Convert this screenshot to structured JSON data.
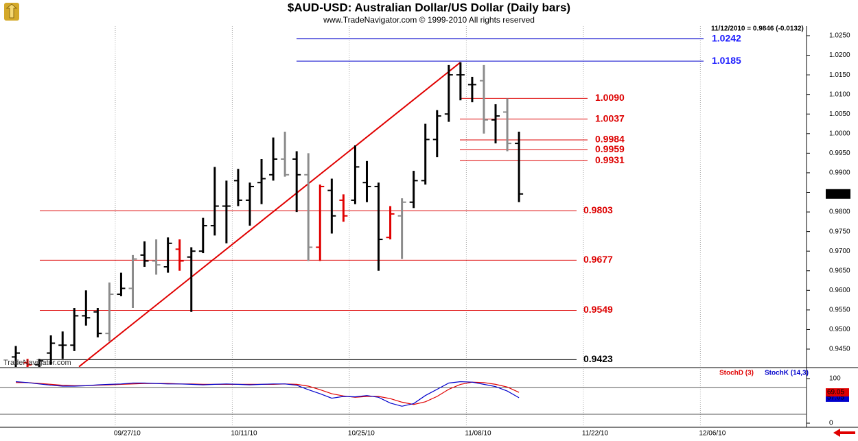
{
  "chart_data": [
    {
      "type": "ohlc",
      "title": "$AUD-USD:  Australian Dollar/US Dollar  (Daily bars)",
      "subtitle": "www.TradeNavigator.com © 1999-2010 All rights reserved",
      "header": "11/12/2010 = 0.9846 (-0.0132)",
      "watermark": "TradeNavigator.com",
      "open": [
        0.943,
        0.9415,
        0.941,
        0.944,
        0.946,
        0.946,
        0.9535,
        0.9545,
        0.949,
        0.959,
        0.9605,
        0.969,
        0.9675,
        0.966,
        0.9705,
        0.9685,
        0.97,
        0.9765,
        0.9815,
        0.988,
        0.983,
        0.9875,
        0.9895,
        0.9935,
        0.9935,
        0.9895,
        0.971,
        0.9855,
        0.983,
        0.983,
        0.9875,
        0.9865,
        0.9735,
        0.979,
        0.9825,
        0.988,
        0.9985,
        1.005,
        1.015,
        1.0125,
        1.0135,
        1.0035,
        1.0055,
        0.9975
      ],
      "high": [
        0.9458,
        0.9425,
        0.9425,
        0.9485,
        0.9495,
        0.9555,
        0.96,
        0.9555,
        0.962,
        0.9645,
        0.969,
        0.9725,
        0.973,
        0.9735,
        0.973,
        0.971,
        0.9785,
        0.9915,
        0.988,
        0.991,
        0.9875,
        0.9935,
        0.999,
        1.0005,
        0.9955,
        0.995,
        0.987,
        0.9885,
        0.9845,
        0.997,
        0.993,
        0.9875,
        0.9815,
        0.9835,
        0.9905,
        1.0025,
        1.006,
        1.0175,
        1.0182,
        1.0145,
        1.0175,
        1.0075,
        1.009,
        1.0005
      ],
      "low": [
        0.94,
        0.94,
        0.9395,
        0.941,
        0.9425,
        0.9445,
        0.951,
        0.948,
        0.947,
        0.9585,
        0.9555,
        0.966,
        0.964,
        0.9645,
        0.965,
        0.9545,
        0.9695,
        0.974,
        0.972,
        0.9815,
        0.9765,
        0.982,
        0.988,
        0.989,
        0.98,
        0.9675,
        0.9675,
        0.9745,
        0.9775,
        0.982,
        0.9825,
        0.965,
        0.973,
        0.968,
        0.981,
        0.987,
        0.994,
        1.003,
        1.0085,
        1.008,
        1.0,
        0.9975,
        0.9955,
        0.9825
      ],
      "close": [
        0.944,
        0.941,
        0.942,
        0.9465,
        0.946,
        0.9535,
        0.953,
        0.949,
        0.959,
        0.9605,
        0.968,
        0.9675,
        0.9665,
        0.972,
        0.9675,
        0.97,
        0.9765,
        0.9815,
        0.9815,
        0.983,
        0.9865,
        0.9885,
        0.9935,
        0.9895,
        0.9895,
        0.971,
        0.9865,
        0.979,
        0.979,
        0.9915,
        0.9865,
        0.973,
        0.9795,
        0.9825,
        0.988,
        0.9985,
        1.0045,
        1.015,
        1.015,
        1.0125,
        1.0035,
        1.0045,
        0.9975,
        0.9846
      ],
      "bar_colors": [
        "#000000",
        "#e00000",
        "#000000",
        "#000000",
        "#000000",
        "#000000",
        "#000000",
        "#000000",
        "#8c8c8c",
        "#000000",
        "#8c8c8c",
        "#000000",
        "#8c8c8c",
        "#000000",
        "#e00000",
        "#000000",
        "#000000",
        "#000000",
        "#000000",
        "#000000",
        "#000000",
        "#000000",
        "#000000",
        "#8c8c8c",
        "#000000",
        "#8c8c8c",
        "#e00000",
        "#000000",
        "#e00000",
        "#000000",
        "#000000",
        "#000000",
        "#e00000",
        "#8c8c8c",
        "#000000",
        "#000000",
        "#000000",
        "#000000",
        "#000000",
        "#000000",
        "#8c8c8c",
        "#000000",
        "#8c8c8c",
        "#000000"
      ],
      "xlim": [
        -1.35,
        67.57
      ],
      "xticks": [
        {
          "value": 8.5,
          "label": "09/27/10"
        },
        {
          "value": 18.5,
          "label": "10/11/10"
        },
        {
          "value": 28.5,
          "label": "10/25/10"
        },
        {
          "value": 38.5,
          "label": "11/08/10"
        },
        {
          "value": 48.5,
          "label": "11/22/10"
        },
        {
          "value": 58.5,
          "label": "12/06/10"
        }
      ],
      "ylim": [
        0.94045,
        1.02745
      ],
      "yticks": [
        {
          "value": 0.945,
          "label": "0.9450"
        },
        {
          "value": 0.95,
          "label": "0.9500"
        },
        {
          "value": 0.955,
          "label": "0.9550"
        },
        {
          "value": 0.96,
          "label": "0.9600"
        },
        {
          "value": 0.965,
          "label": "0.9650"
        },
        {
          "value": 0.97,
          "label": "0.9700"
        },
        {
          "value": 0.975,
          "label": "0.9750"
        },
        {
          "value": 0.98,
          "label": "0.9800"
        },
        {
          "value": 0.985,
          "label": "0.9850"
        },
        {
          "value": 0.99,
          "label": "0.9900"
        },
        {
          "value": 0.995,
          "label": "0.9950"
        },
        {
          "value": 1.0,
          "label": "1.0000"
        },
        {
          "value": 1.005,
          "label": "1.0050"
        },
        {
          "value": 1.01,
          "label": "1.0100"
        },
        {
          "value": 1.015,
          "label": "1.0150"
        },
        {
          "value": 1.02,
          "label": "1.0200"
        },
        {
          "value": 1.025,
          "label": "1.0250"
        }
      ],
      "last_price": 0.9846,
      "levels": [
        {
          "value": 1.0242,
          "label": "1.0242",
          "color": "#0000cc"
        },
        {
          "value": 1.0185,
          "label": "1.0185",
          "color": "#0000cc"
        },
        {
          "value": 1.009,
          "label": "1.0090",
          "color": "#dd0000"
        },
        {
          "value": 1.0037,
          "label": "1.0037",
          "color": "#dd0000"
        },
        {
          "value": 0.9984,
          "label": "0.9984",
          "color": "#dd0000"
        },
        {
          "value": 0.9959,
          "label": "0.9959",
          "color": "#dd0000"
        },
        {
          "value": 0.9931,
          "label": "0.9931",
          "color": "#dd0000"
        },
        {
          "value": 0.9803,
          "label": "0.9803",
          "color": "#dd0000"
        },
        {
          "value": 0.9677,
          "label": "0.9677",
          "color": "#dd0000"
        },
        {
          "value": 0.9549,
          "label": "0.9549",
          "color": "#dd0000"
        },
        {
          "value": 0.9423,
          "label": "0.9423",
          "color": "#000000"
        }
      ],
      "trendline": {
        "x": [
          5.4,
          38
        ],
        "values": [
          0.9405,
          1.0182
        ],
        "color": "#e00000"
      }
    },
    {
      "type": "line",
      "ylim": [
        -7.7,
        121.5
      ],
      "yticks": [
        0,
        100
      ],
      "levels": [
        20,
        80
      ],
      "series": [
        {
          "name": "StochD (3)",
          "color": "#e00000",
          "last_label": "69.05",
          "values": [
            91,
            91,
            89,
            87,
            85,
            84,
            84,
            85,
            86,
            87,
            88,
            89,
            89,
            89,
            88,
            88,
            87,
            87,
            87,
            87,
            87,
            87,
            87,
            88,
            87,
            83,
            75,
            66,
            61,
            58,
            60,
            60,
            55,
            47,
            42,
            48,
            60,
            76,
            87,
            92,
            91,
            87,
            81,
            69.05
          ]
        },
        {
          "name": "StochK (14,3)",
          "color": "#0000cc",
          "last_label": "57.05",
          "values": [
            93,
            91,
            88,
            85,
            83,
            83,
            84,
            86,
            87,
            88,
            90,
            90,
            89,
            88,
            88,
            87,
            86,
            87,
            88,
            87,
            86,
            87,
            88,
            88,
            85,
            75,
            66,
            56,
            60,
            59,
            62,
            58,
            45,
            38,
            44,
            62,
            76,
            90,
            93,
            92,
            87,
            82,
            72,
            57.05
          ]
        }
      ]
    }
  ]
}
